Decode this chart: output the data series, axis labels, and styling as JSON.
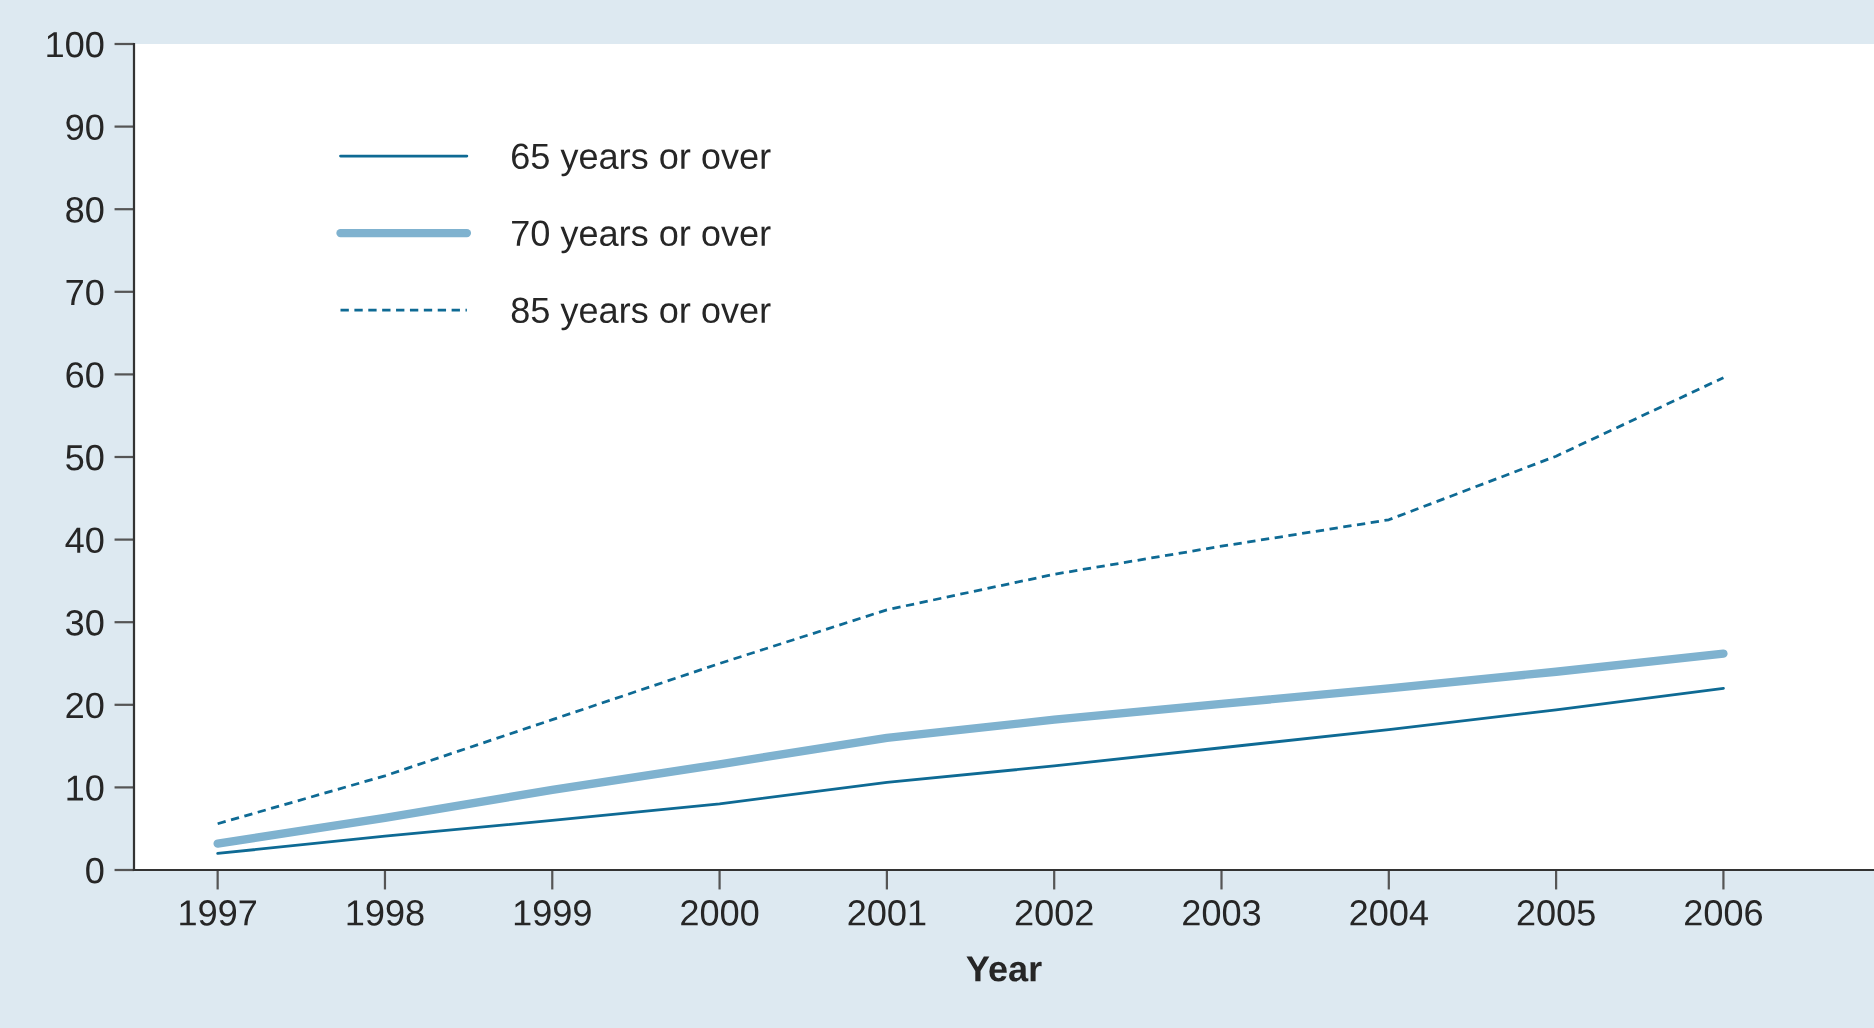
{
  "chart_data": {
    "type": "line",
    "xlabel": "Year",
    "categories": [
      "1997",
      "1998",
      "1999",
      "2000",
      "2001",
      "2002",
      "2003",
      "2004",
      "2005",
      "2006"
    ],
    "series": [
      {
        "name": "65 years or over",
        "color": "#0e6a94",
        "line_style": "solid",
        "values": [
          2,
          4.1,
          6,
          8,
          10.6,
          12.6,
          14.8,
          17,
          19.4,
          22
        ]
      },
      {
        "name": "70 years or over",
        "color": "#7fb2cf",
        "line_style": "solid",
        "values": [
          3.2,
          6.3,
          9.7,
          12.8,
          16,
          18.2,
          20.1,
          22,
          24,
          26.2
        ]
      },
      {
        "name": "85 years or over",
        "color": "#0e6a94",
        "line_style": "dashed",
        "values": [
          5.6,
          11.4,
          18.2,
          25,
          31.5,
          35.8,
          39.2,
          42.4,
          50.1,
          59.6
        ]
      }
    ],
    "ylim": [
      0,
      100
    ],
    "yticks": [
      0,
      10,
      20,
      30,
      40,
      50,
      60,
      70,
      80,
      90,
      100
    ],
    "grid": false,
    "legend": "top left",
    "marker": "none"
  }
}
